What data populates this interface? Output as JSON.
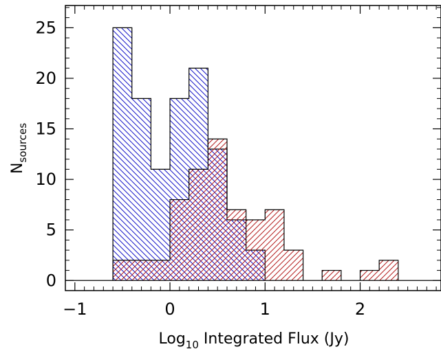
{
  "chart_data": {
    "type": "histogram",
    "xlabel": {
      "main": "Log",
      "sub": "10",
      "rest": " Integrated Flux (Jy)"
    },
    "ylabel": {
      "main": "N",
      "sub": "sources"
    },
    "xlim": [
      -1.1,
      2.85
    ],
    "ylim": [
      -1,
      27.2
    ],
    "bin_width": 0.2,
    "xticks": [
      -1,
      0,
      1,
      2
    ],
    "xtick_labels": [
      "−1",
      "0",
      "1",
      "2"
    ],
    "yticks": [
      0,
      5,
      10,
      15,
      20,
      25
    ],
    "ytick_labels": [
      "0",
      "5",
      "10",
      "15",
      "20",
      "25"
    ],
    "series": [
      {
        "color": "#1414c8",
        "hatch": "backslash",
        "bin_edges": [
          -0.6,
          -0.4,
          -0.2,
          0.0,
          0.2,
          0.4,
          0.6,
          0.8,
          1.0
        ],
        "counts": [
          25,
          18,
          11,
          18,
          21,
          13,
          6,
          3
        ]
      },
      {
        "color": "#b41e1e",
        "hatch": "slash",
        "bin_edges": [
          -0.6,
          -0.4,
          -0.2,
          0.0,
          0.2,
          0.4,
          0.6,
          0.8,
          1.0,
          1.2,
          1.4,
          1.6,
          1.8,
          2.0,
          2.2,
          2.4
        ],
        "counts": [
          2,
          2,
          2,
          8,
          11,
          14,
          7,
          6,
          7,
          3,
          0,
          1,
          0,
          1,
          2
        ]
      }
    ]
  }
}
